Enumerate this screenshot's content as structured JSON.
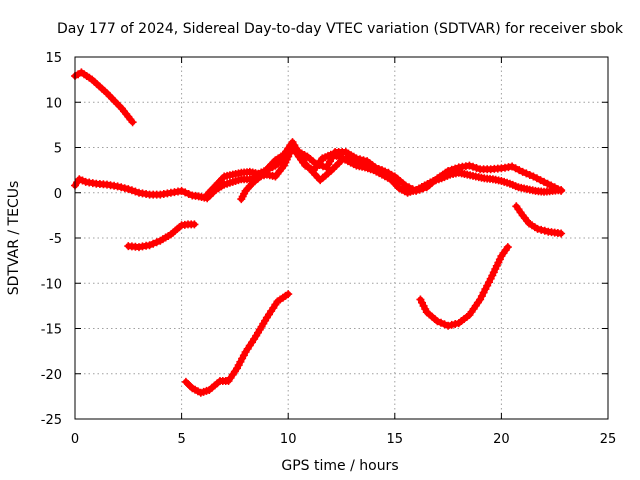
{
  "chart_data": {
    "type": "scatter",
    "title": "Day 177 of 2024, Sidereal Day-to-day VTEC variation (SDTVAR) for receiver sbok",
    "xlabel": "GPS time / hours",
    "ylabel": "SDTVAR / TECUs",
    "xlim": [
      0,
      25
    ],
    "ylim": [
      -25,
      15
    ],
    "x_ticks": [
      0,
      5,
      10,
      15,
      20,
      25
    ],
    "x_tick_labels": [
      "0",
      "5",
      "10",
      "15",
      "20",
      "25"
    ],
    "y_ticks": [
      -25,
      -20,
      -15,
      -10,
      -5,
      0,
      5,
      10,
      15
    ],
    "y_tick_labels": [
      "-25",
      "-20",
      "-15",
      "-10",
      "-5",
      "0",
      "5",
      "10",
      "15"
    ],
    "grid": true,
    "marker": "+",
    "color": "#ff0000",
    "series": [
      {
        "name": "segment-1",
        "x": [
          0.0,
          0.3,
          0.8,
          1.5,
          2.2,
          2.7
        ],
        "y": [
          12.9,
          13.3,
          12.5,
          11.0,
          9.3,
          7.8
        ]
      },
      {
        "name": "segment-2",
        "x": [
          0.0,
          0.2,
          0.5,
          1.0,
          1.5,
          2.0,
          2.5,
          3.0,
          3.5,
          4.0,
          4.5,
          5.0,
          5.5,
          5.8,
          6.2,
          6.6,
          7.0,
          7.4,
          7.8,
          8.2,
          8.6,
          9.0,
          9.4,
          9.8,
          10.2,
          10.5,
          10.8,
          11.2,
          11.6,
          12.0,
          12.4,
          12.8,
          13.2,
          13.6,
          14.0,
          14.4,
          14.8,
          15.2,
          15.6,
          16.0,
          16.4,
          16.8,
          17.2,
          17.6,
          18.0,
          18.4,
          18.8,
          19.2,
          19.6,
          20.0,
          20.4,
          20.8,
          21.2,
          21.6,
          22.0,
          22.4,
          22.8
        ],
        "y": [
          0.8,
          1.5,
          1.2,
          1.0,
          0.9,
          0.7,
          0.4,
          0.0,
          -0.2,
          -0.2,
          0.0,
          0.2,
          -0.3,
          -0.4,
          -0.6,
          0.3,
          0.9,
          1.2,
          1.5,
          1.5,
          1.8,
          2.0,
          1.8,
          3.0,
          5.0,
          4.0,
          3.0,
          2.5,
          3.8,
          4.2,
          4.0,
          3.5,
          3.0,
          2.8,
          2.5,
          2.0,
          1.5,
          0.5,
          0.0,
          0.3,
          0.8,
          1.3,
          1.6,
          2.0,
          2.2,
          2.0,
          1.8,
          1.6,
          1.5,
          1.3,
          1.0,
          0.6,
          0.4,
          0.2,
          0.1,
          0.2,
          0.3
        ]
      },
      {
        "name": "segment-3",
        "x": [
          6.2,
          6.6,
          7.0,
          7.4,
          7.8,
          8.2,
          8.6,
          9.0,
          9.4,
          9.8,
          10.2,
          10.5,
          10.9,
          11.3,
          11.8,
          12.2,
          12.7,
          13.2,
          13.7,
          14.2,
          14.7
        ],
        "y": [
          -0.2,
          0.8,
          1.8,
          2.0,
          2.2,
          2.3,
          2.1,
          2.5,
          3.0,
          3.8,
          5.2,
          4.5,
          4.0,
          3.2,
          2.8,
          4.5,
          4.5,
          3.8,
          3.5,
          2.6,
          2.2
        ]
      },
      {
        "name": "segment-4",
        "x": [
          7.8,
          8.0,
          8.3,
          8.7,
          9.0,
          9.4,
          9.8,
          10.2,
          10.8,
          11.5,
          12.0,
          12.6,
          13.2,
          13.8,
          14.4,
          15.0,
          15.5,
          16.0,
          16.5,
          17.0,
          17.5,
          18.0,
          18.5,
          19.0,
          19.5,
          20.0,
          20.5,
          21.0,
          21.5,
          22.0,
          22.5,
          22.8
        ],
        "y": [
          -0.7,
          0.2,
          1.0,
          1.8,
          2.6,
          3.6,
          4.2,
          5.6,
          3.2,
          1.4,
          2.4,
          3.8,
          3.4,
          3.0,
          2.5,
          1.8,
          0.8,
          0.2,
          0.6,
          1.6,
          2.4,
          2.8,
          3.0,
          2.6,
          2.6,
          2.7,
          2.9,
          2.3,
          1.8,
          1.2,
          0.6,
          0.2
        ]
      },
      {
        "name": "segment-5",
        "x": [
          2.5,
          3.0,
          3.5,
          4.0,
          4.5,
          4.8,
          5.0,
          5.3,
          5.6
        ],
        "y": [
          -5.9,
          -6.0,
          -5.8,
          -5.3,
          -4.6,
          -4.0,
          -3.6,
          -3.5,
          -3.5
        ]
      },
      {
        "name": "segment-6",
        "x": [
          5.2,
          5.5,
          5.9,
          6.3,
          6.8,
          7.2,
          7.6,
          8.0,
          8.5,
          9.0,
          9.5,
          10.0
        ],
        "y": [
          -20.9,
          -21.6,
          -22.1,
          -21.8,
          -20.8,
          -20.8,
          -19.4,
          -17.6,
          -15.8,
          -13.8,
          -12.0,
          -11.2
        ]
      },
      {
        "name": "segment-7",
        "x": [
          16.2,
          16.5,
          17.0,
          17.5,
          18.0,
          18.5,
          19.0,
          19.5,
          20.0,
          20.3
        ],
        "y": [
          -11.8,
          -13.2,
          -14.2,
          -14.7,
          -14.4,
          -13.5,
          -11.8,
          -9.5,
          -7.0,
          -6.0
        ]
      },
      {
        "name": "segment-8",
        "x": [
          20.7,
          21.0,
          21.3,
          21.7,
          22.2,
          22.8
        ],
        "y": [
          -1.5,
          -2.5,
          -3.4,
          -4.0,
          -4.3,
          -4.5
        ]
      }
    ]
  }
}
